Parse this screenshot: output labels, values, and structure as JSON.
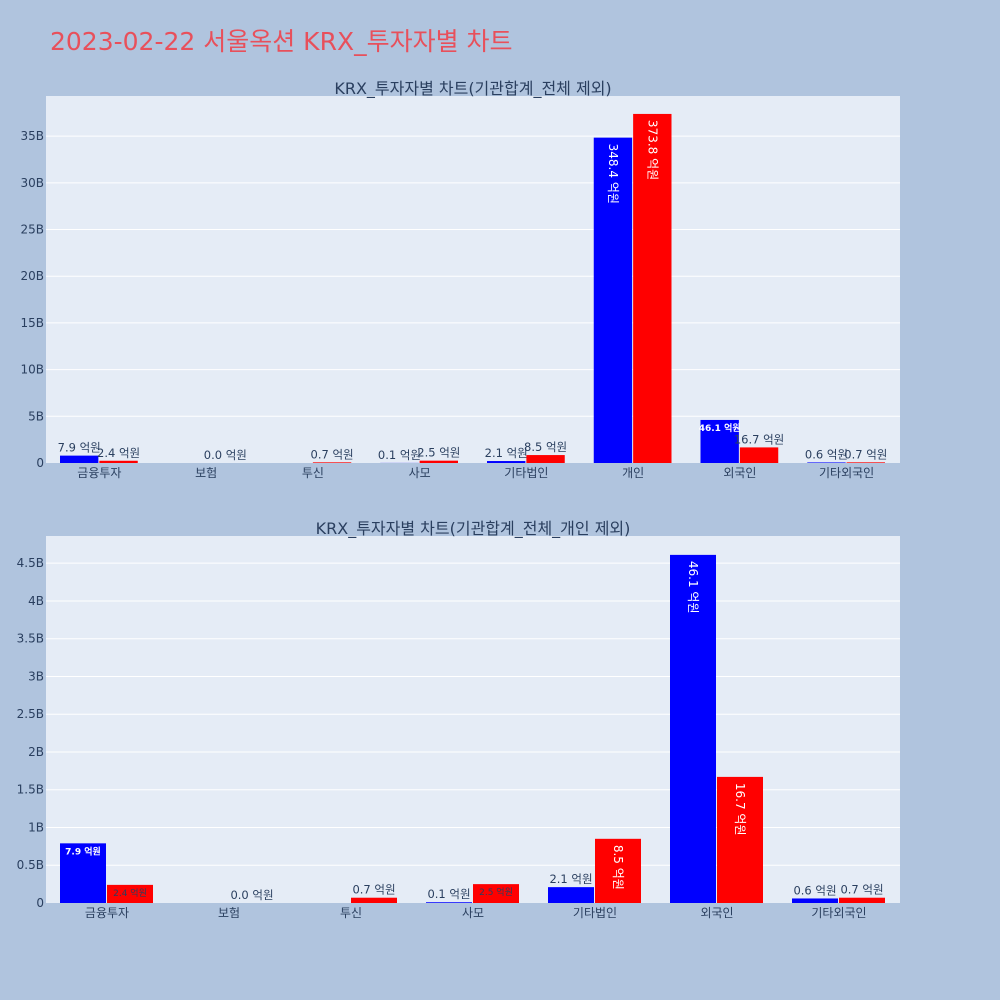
{
  "page": {
    "title": "2023-02-22 서울옥션 KRX_투자자별 차트",
    "background": "#b0c4de",
    "title_color": "#e8505b"
  },
  "chart_data": [
    {
      "type": "bar",
      "title": "KRX_투자자별 차트(기관합계_전체 제외)",
      "categories": [
        "금융투자",
        "보험",
        "투신",
        "사모",
        "기타법인",
        "개인",
        "외국인",
        "기타외국인"
      ],
      "series": [
        {
          "color": "#0000ff",
          "values": [
            790000000,
            0,
            0,
            10000000,
            210000000,
            34840000000,
            4610000000,
            60000000
          ],
          "labels": [
            "7.9 억원",
            "",
            "",
            "0.1 억원",
            "2.1 억원",
            "348.4 억원",
            "46.1 억원",
            "0.6 억원"
          ]
        },
        {
          "color": "#ff0000",
          "values": [
            240000000,
            0,
            70000000,
            250000000,
            850000000,
            37380000000,
            1670000000,
            70000000
          ],
          "labels": [
            "2.4 억원",
            "0.0 억원",
            "0.7 억원",
            "2.5 억원",
            "8.5 억원",
            "373.8 억원",
            "16.7 억원",
            "0.7 억원"
          ]
        }
      ],
      "yticks": [
        "0",
        "5B",
        "10B",
        "15B",
        "20B",
        "25B",
        "30B",
        "35B"
      ],
      "ytick_values": [
        0,
        5000000000,
        10000000000,
        15000000000,
        20000000000,
        25000000000,
        30000000000,
        35000000000
      ],
      "ylim": [
        0,
        39300000000
      ],
      "grid": true
    },
    {
      "type": "bar",
      "title": "KRX_투자자별 차트(기관합계_전체_개인 제외)",
      "categories": [
        "금융투자",
        "보험",
        "투신",
        "사모",
        "기타법인",
        "외국인",
        "기타외국인"
      ],
      "series": [
        {
          "color": "#0000ff",
          "values": [
            790000000,
            0,
            0,
            10000000,
            210000000,
            4610000000,
            60000000
          ],
          "labels": [
            "7.9 억원",
            "",
            "",
            "0.1 억원",
            "2.1 억원",
            "46.1 억원",
            "0.6 억원"
          ]
        },
        {
          "color": "#ff0000",
          "values": [
            240000000,
            0,
            70000000,
            250000000,
            850000000,
            1670000000,
            70000000
          ],
          "labels": [
            "2.4 억원",
            "0.0 억원",
            "0.7 억원",
            "2.5 억원",
            "8.5 억원",
            "16.7 억원",
            "0.7 억원"
          ]
        }
      ],
      "yticks": [
        "0",
        "0.5B",
        "1B",
        "1.5B",
        "2B",
        "2.5B",
        "3B",
        "3.5B",
        "4B",
        "4.5B"
      ],
      "ytick_values": [
        0,
        500000000,
        1000000000,
        1500000000,
        2000000000,
        2500000000,
        3000000000,
        3500000000,
        4000000000,
        4500000000
      ],
      "ylim": [
        0,
        4860000000
      ],
      "grid": true
    }
  ]
}
